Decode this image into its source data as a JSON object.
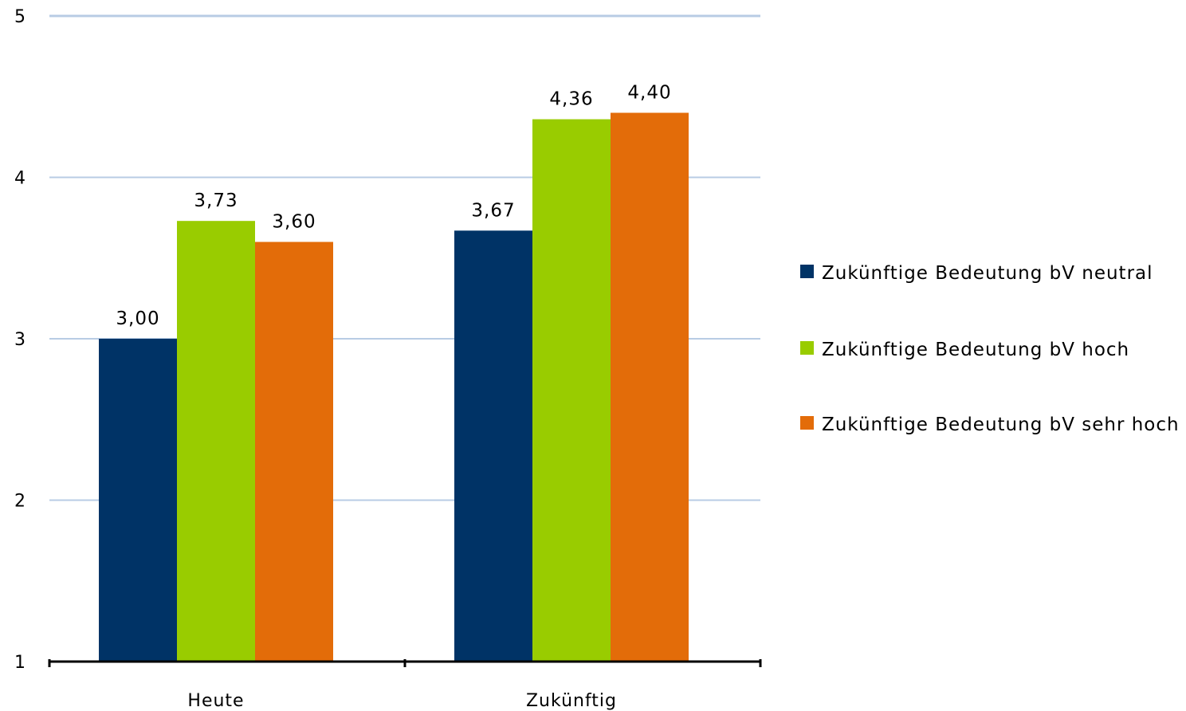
{
  "chart_data": {
    "type": "bar",
    "title": "",
    "xlabel": "",
    "ylabel": "",
    "categories": [
      "Heute",
      "Zukünftig"
    ],
    "series": [
      {
        "name": "Zukünftige Bedeutung bV neutral",
        "values": [
          3.0,
          3.67
        ],
        "labels": [
          "3,00",
          "3,67"
        ],
        "color": "#003366"
      },
      {
        "name": "Zukünftige Bedeutung bV hoch",
        "values": [
          3.73,
          4.36
        ],
        "labels": [
          "3,73",
          "4,36"
        ],
        "color": "#99cc00"
      },
      {
        "name": "Zukünftige Bedeutung bV sehr hoch",
        "values": [
          3.6,
          4.4
        ],
        "labels": [
          "3,60",
          "4,40"
        ],
        "color": "#e36c09"
      }
    ],
    "ylim": [
      1,
      5
    ],
    "yticks": [
      "1",
      "2",
      "3",
      "4",
      "5"
    ],
    "grid": true,
    "gridline_color": "#b8cce4",
    "legend_position": "right"
  }
}
